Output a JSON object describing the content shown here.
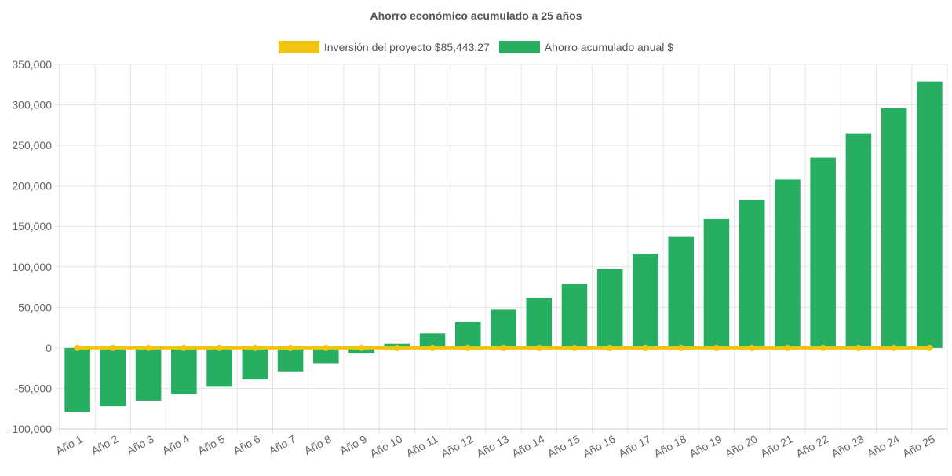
{
  "chart_data": {
    "type": "bar",
    "title": "Ahorro económico acumulado a 25 años",
    "legend_position": "top-center",
    "grid": true,
    "categories": [
      "Año 1",
      "Año 2",
      "Año 3",
      "Año 4",
      "Año 5",
      "Año 6",
      "Año 7",
      "Año 8",
      "Año 9",
      "Año 10",
      "Año 11",
      "Año 12",
      "Año 13",
      "Año 14",
      "Año 15",
      "Año 16",
      "Año 17",
      "Año 18",
      "Año 19",
      "Año 20",
      "Año 21",
      "Año 22",
      "Año 23",
      "Año 24",
      "Año 25"
    ],
    "ylim": [
      -100000,
      350000
    ],
    "yticks": [
      350000,
      300000,
      250000,
      200000,
      150000,
      100000,
      50000,
      0,
      -50000,
      -100000
    ],
    "ytick_labels": [
      "350,000",
      "300,000",
      "250,000",
      "200,000",
      "150,000",
      "100,000",
      "50,000",
      "0",
      "-50,000",
      "-100,000"
    ],
    "series": [
      {
        "name": "Inversión del proyecto $85,443.27",
        "type": "line",
        "color": "#f1c40f",
        "values": [
          0,
          0,
          0,
          0,
          0,
          0,
          0,
          0,
          0,
          0,
          0,
          0,
          0,
          0,
          0,
          0,
          0,
          0,
          0,
          0,
          0,
          0,
          0,
          0,
          0
        ]
      },
      {
        "name": "Ahorro acumulado anual $",
        "type": "bar",
        "color": "#27ae60",
        "values": [
          -79000,
          -72000,
          -65000,
          -57000,
          -48000,
          -39000,
          -29000,
          -19000,
          -7000,
          5000,
          18000,
          32000,
          47000,
          62000,
          79000,
          97000,
          116000,
          137000,
          159000,
          183000,
          208000,
          235000,
          265000,
          296000,
          329000
        ]
      }
    ]
  }
}
